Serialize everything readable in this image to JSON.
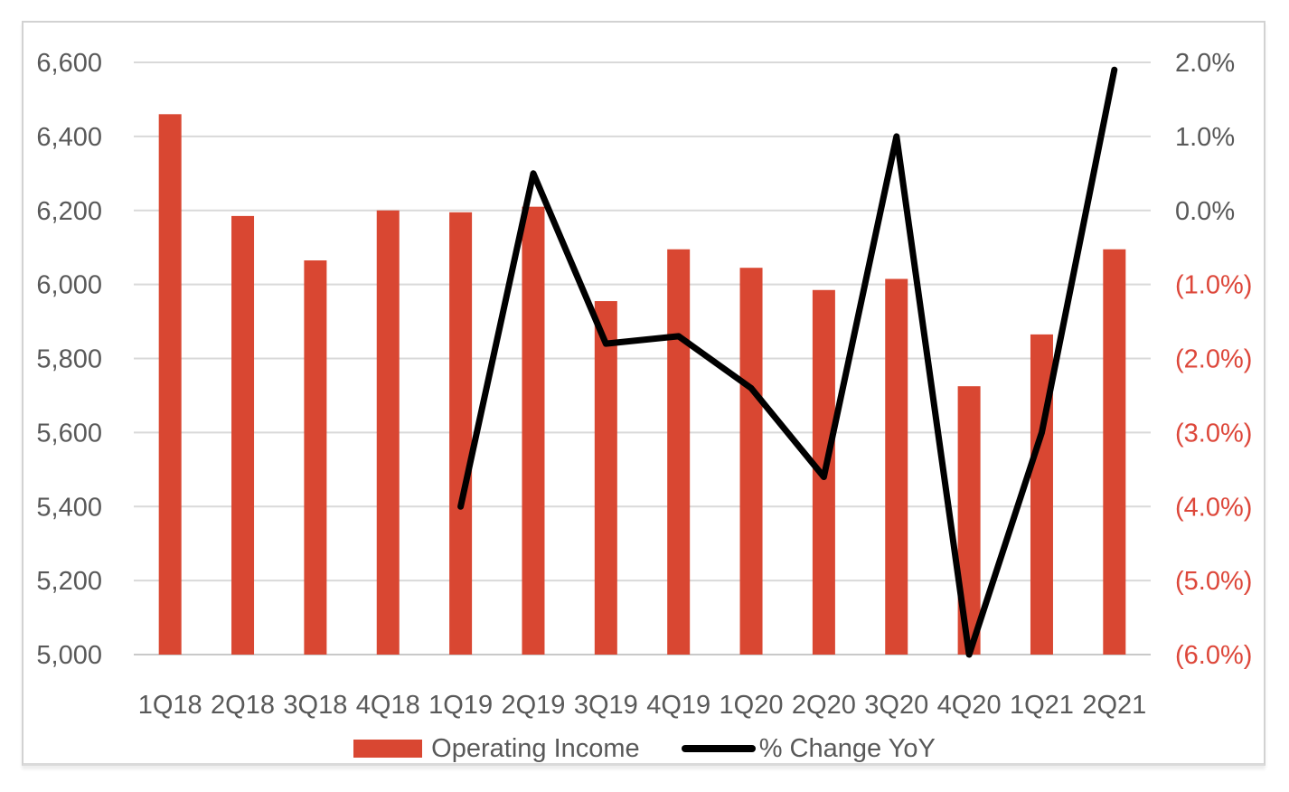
{
  "chart_data": {
    "type": "bar",
    "subtype": "combo-bar-line-dual-axis",
    "categories": [
      "1Q18",
      "2Q18",
      "3Q18",
      "4Q18",
      "1Q19",
      "2Q19",
      "3Q19",
      "4Q19",
      "1Q20",
      "2Q20",
      "3Q20",
      "4Q20",
      "1Q21",
      "2Q21"
    ],
    "series": [
      {
        "name": "Operating Income",
        "type": "bar",
        "axis": "left",
        "color": "#d94732",
        "values": [
          6460,
          6185,
          6065,
          6200,
          6195,
          6210,
          5955,
          6095,
          6045,
          5985,
          6015,
          5725,
          5865,
          6095
        ]
      },
      {
        "name": "% Change YoY",
        "type": "line",
        "axis": "right",
        "color": "#000000",
        "values": [
          null,
          null,
          null,
          null,
          -4.0,
          0.5,
          -1.8,
          -1.7,
          -2.4,
          -3.6,
          1.0,
          -6.0,
          -3.0,
          1.9
        ]
      }
    ],
    "left_axis": {
      "min": 5000,
      "max": 6600,
      "step": 200,
      "tick_labels_top_to_bottom": [
        "6,600",
        "6,400",
        "6,200",
        "6,000",
        "5,800",
        "5,600",
        "5,400",
        "5,200",
        "5,000"
      ]
    },
    "right_axis": {
      "min": -6.0,
      "max": 2.0,
      "step": 1.0,
      "tick_labels_top_to_bottom": [
        "2.0%",
        "1.0%",
        "0.0%",
        "(1.0%)",
        "(2.0%)",
        "(3.0%)",
        "(4.0%)",
        "(5.0%)",
        "(6.0%)"
      ],
      "negative_ticks_top_to_bottom": [
        false,
        false,
        false,
        true,
        true,
        true,
        true,
        true,
        true
      ]
    },
    "title": "",
    "xlabel": "",
    "ylabel": "",
    "grid": true,
    "legend_position": "bottom"
  },
  "colors": {
    "bar_fill": "#d94732",
    "line_stroke": "#000000",
    "gridline": "#d9d9d9",
    "axis_baseline": "#c9c9c9",
    "tick_text_gray": "#595959",
    "tick_text_negative_red": "#dd473a",
    "card_border": "#d2d2d2",
    "background": "#ffffff"
  },
  "legend": {
    "operating_income_label": "Operating Income",
    "pct_change_label": "% Change YoY"
  }
}
